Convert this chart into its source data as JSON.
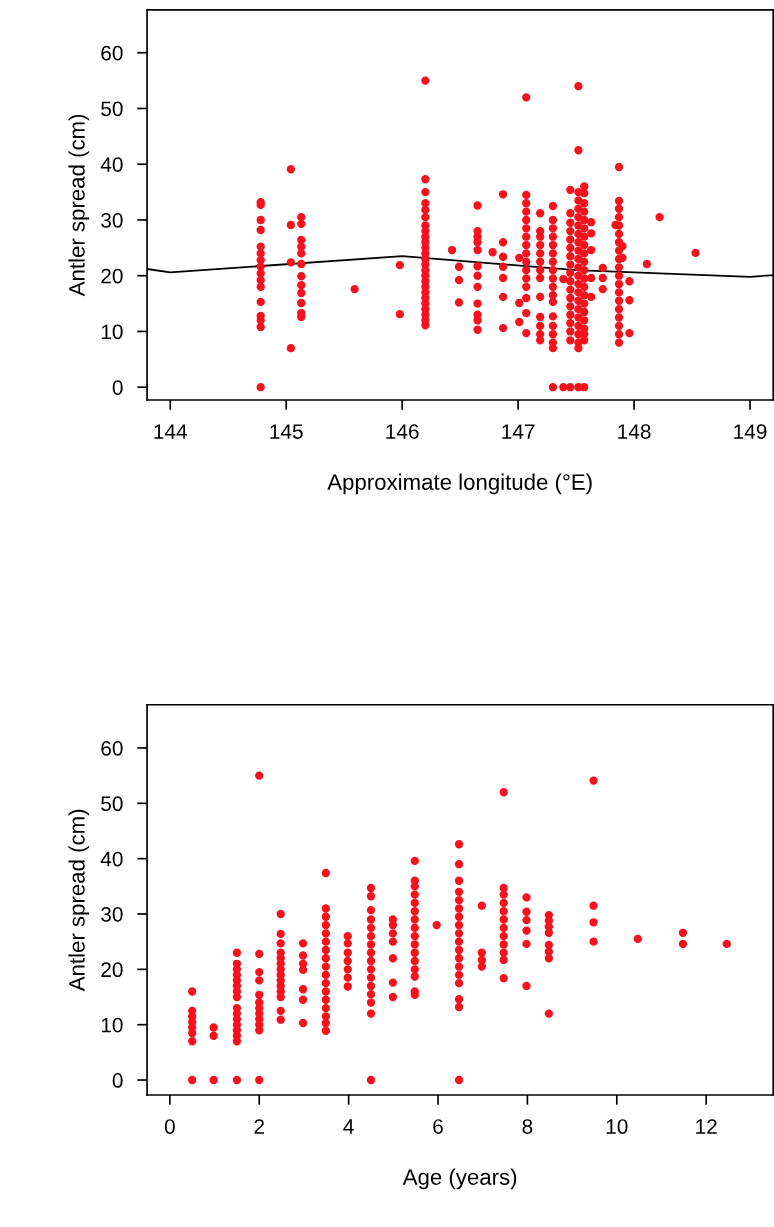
{
  "chart_data": [
    {
      "type": "scatter",
      "xlabel": "Approximate longitude (°E)",
      "ylabel": "Antler spread (cm)",
      "xlim": [
        143.8,
        149.2
      ],
      "ylim": [
        -2.3,
        67.7
      ],
      "xticks": [
        144,
        145,
        146,
        147,
        148,
        149
      ],
      "yticks": [
        0,
        10,
        20,
        30,
        40,
        50,
        60
      ],
      "grid": false,
      "series": [
        {
          "marker": "circle",
          "color": "#f8111c",
          "x": [
            144.78,
            144.78,
            144.78,
            144.78,
            144.78,
            144.78,
            144.78,
            144.78,
            144.78,
            144.78,
            144.78,
            144.78,
            144.78,
            144.78,
            144.78,
            144.78,
            145.04,
            145.04,
            145.04,
            145.04,
            145.13,
            145.13,
            145.13,
            145.13,
            145.13,
            145.13,
            145.13,
            145.13,
            145.13,
            145.13,
            145.13,
            145.13,
            145.59,
            145.98,
            145.98,
            146.2,
            146.2,
            146.2,
            146.2,
            146.2,
            146.2,
            146.2,
            146.2,
            146.2,
            146.2,
            146.2,
            146.2,
            146.2,
            146.2,
            146.2,
            146.2,
            146.2,
            146.2,
            146.2,
            146.2,
            146.2,
            146.2,
            146.2,
            146.2,
            146.2,
            146.43,
            146.49,
            146.49,
            146.49,
            146.65,
            146.65,
            146.65,
            146.65,
            146.65,
            146.65,
            146.65,
            146.65,
            146.65,
            146.65,
            146.65,
            146.65,
            146.78,
            146.87,
            146.87,
            146.87,
            146.87,
            146.87,
            146.87,
            146.87,
            147.01,
            147.01,
            147.01,
            147.07,
            147.07,
            147.07,
            147.07,
            147.07,
            147.07,
            147.07,
            147.07,
            147.07,
            147.07,
            147.07,
            147.07,
            147.07,
            147.07,
            147.07,
            147.07,
            147.19,
            147.19,
            147.19,
            147.19,
            147.19,
            147.19,
            147.19,
            147.19,
            147.19,
            147.19,
            147.19,
            147.19,
            147.19,
            147.3,
            147.3,
            147.3,
            147.3,
            147.3,
            147.3,
            147.3,
            147.3,
            147.3,
            147.3,
            147.3,
            147.3,
            147.3,
            147.3,
            147.3,
            147.3,
            147.3,
            147.3,
            147.39,
            147.39,
            147.45,
            147.45,
            147.45,
            147.45,
            147.45,
            147.45,
            147.45,
            147.45,
            147.45,
            147.45,
            147.45,
            147.45,
            147.45,
            147.45,
            147.45,
            147.45,
            147.45,
            147.45,
            147.52,
            147.52,
            147.52,
            147.52,
            147.52,
            147.52,
            147.52,
            147.52,
            147.52,
            147.52,
            147.52,
            147.52,
            147.52,
            147.52,
            147.52,
            147.52,
            147.52,
            147.52,
            147.52,
            147.52,
            147.52,
            147.52,
            147.52,
            147.57,
            147.57,
            147.57,
            147.57,
            147.57,
            147.57,
            147.57,
            147.57,
            147.57,
            147.57,
            147.57,
            147.57,
            147.57,
            147.57,
            147.57,
            147.57,
            147.57,
            147.57,
            147.57,
            147.57,
            147.57,
            147.63,
            147.63,
            147.63,
            147.63,
            147.63,
            147.73,
            147.73,
            147.73,
            147.84,
            147.87,
            147.87,
            147.87,
            147.87,
            147.87,
            147.87,
            147.87,
            147.87,
            147.87,
            147.87,
            147.87,
            147.87,
            147.87,
            147.87,
            147.87,
            147.87,
            147.87,
            147.87,
            147.87,
            147.9,
            147.9,
            147.96,
            147.96,
            147.96,
            148.11,
            148.22,
            148.53
          ],
          "values": [
            0,
            10.8,
            12,
            12.8,
            15.3,
            18,
            19.2,
            20.4,
            21.6,
            22.8,
            24,
            25.2,
            28.2,
            30,
            32.7,
            33.2,
            39.1,
            29.1,
            22.4,
            7,
            30.5,
            29.3,
            26.4,
            25.2,
            24,
            22.1,
            19.9,
            18.3,
            16.9,
            15.1,
            13.3,
            12.6,
            17.6,
            21.9,
            13.1,
            55,
            37.3,
            35,
            33,
            31.8,
            30.5,
            29,
            28,
            27,
            26,
            25,
            24,
            23,
            22,
            21,
            20,
            19,
            18,
            17,
            16,
            15,
            14,
            13,
            12,
            11.1,
            24.6,
            21.6,
            19.2,
            15.2,
            32.6,
            28,
            27,
            26,
            24.6,
            21.7,
            20,
            18,
            15,
            13,
            12,
            10.3,
            24.2,
            34.6,
            26,
            23.4,
            21.6,
            19.6,
            16.2,
            10.6,
            23.2,
            15.1,
            11.7,
            52,
            34.5,
            33,
            31.5,
            30,
            28.5,
            27,
            25.5,
            24,
            22.5,
            21,
            19.5,
            18,
            16,
            13.3,
            9.7,
            31.2,
            28,
            27,
            25.5,
            24,
            22.5,
            21,
            19.6,
            16.2,
            12.6,
            11,
            9.5,
            8.4,
            32.5,
            30,
            28.5,
            27,
            25.5,
            24,
            22.5,
            21,
            19.5,
            18,
            16.5,
            15.3,
            12.7,
            11,
            9.5,
            8,
            7,
            0,
            0,
            19.4,
            35.4,
            31.2,
            29.5,
            28,
            26.5,
            25,
            23.5,
            22,
            20.5,
            19,
            17.5,
            16,
            14.5,
            13,
            11.5,
            10,
            8.4,
            0,
            54,
            42.5,
            35,
            33.5,
            32,
            30.5,
            29,
            27.5,
            26,
            24.5,
            23,
            21.5,
            20,
            18.5,
            17,
            15.5,
            14,
            12.5,
            11,
            9.5,
            8,
            7,
            0,
            36,
            34.8,
            33,
            31.5,
            30,
            28.5,
            27,
            25.5,
            24,
            22.5,
            21,
            19.5,
            18,
            16.5,
            15,
            13.5,
            12,
            10.5,
            9.5,
            8.4,
            0,
            29.6,
            27.6,
            24.6,
            19.6,
            16.2,
            21.4,
            19.6,
            17.6,
            29.1,
            39.5,
            33.4,
            32,
            30.5,
            29,
            27.5,
            26,
            24.5,
            23,
            21.5,
            20,
            18.5,
            17,
            15.5,
            14,
            12.5,
            11,
            9.5,
            8,
            25.3,
            23.2,
            19,
            15.6,
            9.7,
            22.1,
            30.5,
            24.1
          ]
        },
        {
          "type": "line",
          "color": "#000000",
          "x": [
            143.8,
            144,
            146,
            147.5,
            149,
            149.2
          ],
          "values": [
            21.2,
            20.6,
            23.5,
            21,
            19.8,
            20.1
          ]
        }
      ]
    },
    {
      "type": "scatter",
      "xlabel": "Age (years)",
      "ylabel": "Antler spread (cm)",
      "xlim": [
        -0.51,
        13.5
      ],
      "ylim": [
        -2.7,
        67.8
      ],
      "xticks": [
        0,
        2,
        4,
        6,
        8,
        10,
        12
      ],
      "yticks": [
        0,
        10,
        20,
        30,
        40,
        50,
        60
      ],
      "grid": false,
      "series": [
        {
          "marker": "circle",
          "color": "#f8111c",
          "x": [
            0.5,
            0.5,
            0.5,
            0.5,
            0.5,
            0.5,
            0.5,
            0.5,
            0.98,
            0.98,
            0.98,
            1.5,
            1.5,
            1.5,
            1.5,
            1.5,
            1.5,
            1.5,
            1.5,
            1.5,
            1.5,
            1.5,
            1.5,
            1.5,
            1.5,
            1.5,
            1.5,
            2,
            2,
            2,
            2,
            2,
            2,
            2,
            2,
            2,
            2,
            2,
            2,
            2.48,
            2.48,
            2.48,
            2.48,
            2.48,
            2.48,
            2.48,
            2.48,
            2.48,
            2.48,
            2.48,
            2.48,
            2.48,
            2.48,
            2.98,
            2.98,
            2.98,
            2.98,
            2.98,
            2.98,
            2.98,
            3.49,
            3.49,
            3.49,
            3.49,
            3.49,
            3.49,
            3.49,
            3.49,
            3.49,
            3.49,
            3.49,
            3.49,
            3.49,
            3.49,
            3.49,
            3.49,
            3.49,
            3.98,
            3.98,
            3.98,
            3.98,
            3.98,
            3.98,
            3.98,
            4.5,
            4.5,
            4.5,
            4.5,
            4.5,
            4.5,
            4.5,
            4.5,
            4.5,
            4.5,
            4.5,
            4.5,
            4.5,
            4.5,
            4.5,
            4.5,
            4.99,
            4.99,
            4.99,
            4.99,
            4.99,
            4.99,
            4.99,
            5.48,
            5.48,
            5.48,
            5.48,
            5.48,
            5.48,
            5.48,
            5.48,
            5.48,
            5.48,
            5.48,
            5.48,
            5.48,
            5.48,
            5.48,
            5.48,
            5.97,
            6.47,
            6.47,
            6.47,
            6.47,
            6.47,
            6.47,
            6.47,
            6.47,
            6.47,
            6.47,
            6.47,
            6.47,
            6.47,
            6.47,
            6.47,
            6.47,
            6.47,
            6.47,
            6.98,
            6.98,
            6.98,
            6.98,
            7.47,
            7.47,
            7.47,
            7.47,
            7.47,
            7.47,
            7.47,
            7.47,
            7.47,
            7.47,
            7.47,
            7.47,
            7.98,
            7.98,
            7.98,
            7.98,
            7.98,
            7.98,
            8.48,
            8.48,
            8.48,
            8.48,
            8.48,
            8.48,
            8.48,
            8.48,
            9.48,
            9.48,
            9.48,
            9.48,
            10.47,
            11.48,
            11.48,
            12.46
          ],
          "values": [
            0,
            7,
            8.5,
            9.5,
            10.5,
            11.5,
            12.5,
            16,
            0,
            8,
            9.5,
            0,
            7,
            8,
            9,
            10,
            11,
            12,
            13,
            15,
            16,
            17,
            18,
            19,
            20,
            21,
            23,
            0,
            9,
            10,
            11,
            12,
            13,
            14,
            15.4,
            18,
            19.5,
            22.8,
            55,
            10.9,
            12.5,
            15,
            16,
            17,
            18,
            19,
            20,
            21,
            22,
            23,
            24.7,
            26.4,
            30,
            10.3,
            14.5,
            16.4,
            19.9,
            21,
            22.5,
            24.7,
            8.9,
            10.3,
            11.5,
            13,
            14.5,
            16,
            17.5,
            19,
            20.5,
            22,
            23.5,
            25,
            26.5,
            28,
            29.5,
            31,
            37.4,
            16.9,
            18.5,
            20,
            21.5,
            23,
            24.7,
            26,
            0,
            12,
            14,
            15.5,
            17,
            18.5,
            20,
            21.5,
            23,
            24.5,
            26,
            27.5,
            29,
            30.7,
            33.2,
            34.7,
            15,
            17.6,
            22,
            25,
            26.5,
            28,
            29,
            15.4,
            16,
            18.7,
            20,
            21.5,
            23,
            24.5,
            26,
            27.5,
            29,
            30.5,
            32,
            33.5,
            35,
            36,
            39.6,
            28,
            0,
            13.2,
            14.6,
            17.5,
            19,
            20.5,
            22,
            23.5,
            25,
            26.5,
            28,
            29.5,
            31,
            32.5,
            34,
            36,
            39,
            42.6,
            20.5,
            21.7,
            23,
            31.5,
            18.4,
            21.7,
            23,
            24.5,
            26,
            27.5,
            29,
            30.5,
            32,
            33.5,
            34.7,
            52,
            17,
            24.6,
            27,
            28.9,
            30.4,
            33,
            12,
            22,
            23.2,
            24.4,
            26.6,
            27.7,
            28.8,
            29.8,
            25,
            28.5,
            31.5,
            54.1,
            25.5,
            24.6,
            26.6,
            24.6
          ]
        }
      ]
    }
  ]
}
